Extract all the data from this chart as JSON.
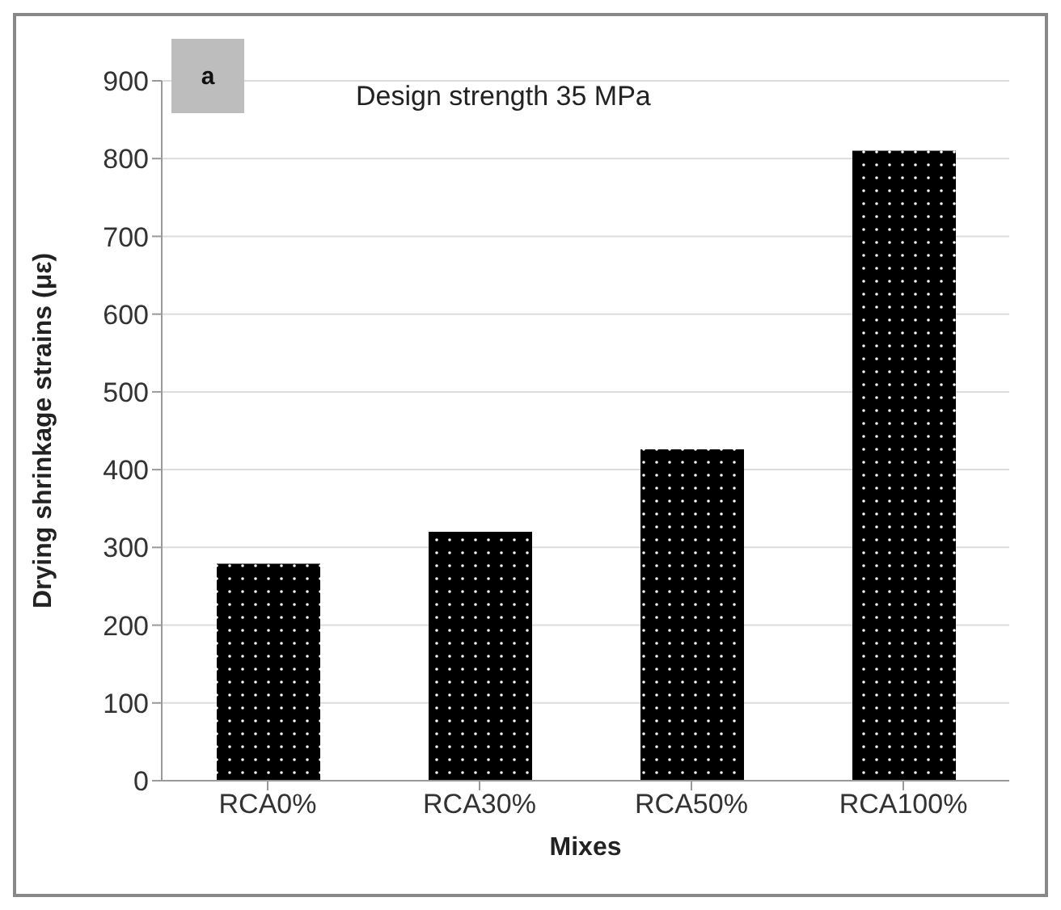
{
  "chart_data": {
    "type": "bar",
    "annotations": [
      "a",
      "Design strength 35 MPa"
    ],
    "xlabel": "Mixes",
    "ylabel": "Drying shrinkage strains (με)",
    "categories": [
      "RCA0%",
      "RCA30%",
      "RCA50%",
      "RCA100%"
    ],
    "values": [
      279,
      320,
      426,
      810
    ],
    "color": "#000000",
    "ylim": [
      0,
      900
    ],
    "yticks": [
      0,
      100,
      200,
      300,
      400,
      500,
      600,
      700,
      800,
      900
    ],
    "grid": "y"
  }
}
